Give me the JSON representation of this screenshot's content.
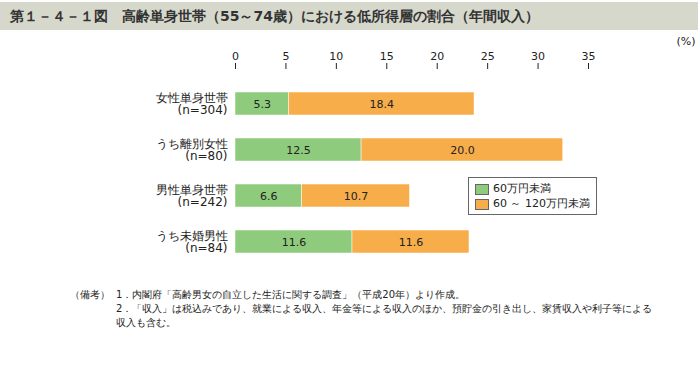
{
  "chart_data": {
    "type": "bar",
    "orientation": "horizontal",
    "stacked": true,
    "data_labels": true,
    "grid": false,
    "legend": "right",
    "title": "第１－４－１図　高齢単身世帯（55～74歳）における低所得層の割合（年間収入）",
    "x_label": "(%)",
    "categories": [
      "女性単身世帯\n(n=304)",
      "うち離別女性\n(n=80)",
      "男性単身世帯\n(n=242)",
      "うち未婚男性\n(n=84)"
    ],
    "series": [
      {
        "name": "60万円未満",
        "color": "#8fcb7c",
        "values": [
          5.3,
          12.5,
          6.6,
          11.6
        ]
      },
      {
        "name": "60 ～ 120万円未満",
        "color": "#f7ae4a",
        "values": [
          18.4,
          20.0,
          10.7,
          11.6
        ],
        "value_labels": [
          "18.4",
          "20.0",
          "10.7",
          "11.6"
        ]
      }
    ],
    "xlim": [
      0,
      35
    ],
    "xticks": [
      0,
      5,
      10,
      15,
      20,
      25,
      30,
      35
    ],
    "notes": [
      "（備考）",
      "1．内閣府「高齢男女の自立した生活に関する調査」（平成20年）より作成。",
      "2．「収入」は税込みであり、就業による収入、年金等による収入のほか、預貯金の引き出し、家賃収入や利子等による収入も含む。"
    ]
  }
}
